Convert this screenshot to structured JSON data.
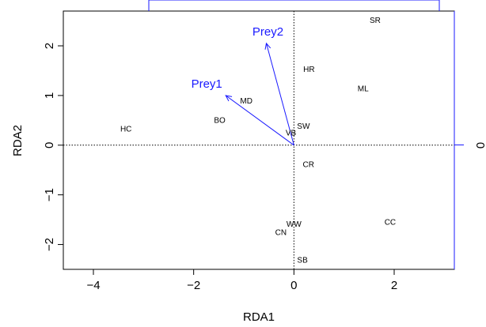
{
  "chart_data": {
    "type": "scatter",
    "xlabel": "RDA1",
    "ylabel": "RDA2",
    "xlim": [
      -4.6,
      3.2
    ],
    "ylim": [
      -2.5,
      2.7
    ],
    "x_ticks": [
      {
        "value": -4,
        "label": "−4"
      },
      {
        "value": -2,
        "label": "−2"
      },
      {
        "value": 0,
        "label": "0"
      },
      {
        "value": 2,
        "label": "2"
      }
    ],
    "y_ticks": [
      {
        "value": -2,
        "label": "−2"
      },
      {
        "value": -1,
        "label": "−1"
      },
      {
        "value": 0,
        "label": "0"
      },
      {
        "value": 1,
        "label": "1"
      },
      {
        "value": 2,
        "label": "2"
      }
    ],
    "right_axis_label": "0",
    "sites": [
      {
        "label": "SR",
        "x": 1.62,
        "y": 2.5
      },
      {
        "label": "HR",
        "x": 0.3,
        "y": 1.52
      },
      {
        "label": "ML",
        "x": 1.38,
        "y": 1.13
      },
      {
        "label": "MD",
        "x": -0.95,
        "y": 0.88
      },
      {
        "label": "HC",
        "x": -3.35,
        "y": 0.32
      },
      {
        "label": "BO",
        "x": -1.48,
        "y": 0.49
      },
      {
        "label": "SW",
        "x": 0.19,
        "y": 0.37
      },
      {
        "label": "VB",
        "x": -0.06,
        "y": 0.24
      },
      {
        "label": "CR",
        "x": 0.29,
        "y": -0.4
      },
      {
        "label": "CC",
        "x": 1.92,
        "y": -1.56
      },
      {
        "label": "WW",
        "x": 0.0,
        "y": -1.6
      },
      {
        "label": "CN",
        "x": -0.26,
        "y": -1.77
      },
      {
        "label": "SB",
        "x": 0.17,
        "y": -2.32
      }
    ],
    "arrows": [
      {
        "label": "Prey1",
        "x": -1.36,
        "y": 1.0
      },
      {
        "label": "Prey2",
        "x": -0.55,
        "y": 2.05
      }
    ],
    "arrow_color": "#1a1aff",
    "axis_color": "#000000",
    "right_axis_color": "#1a1aff",
    "reference_lines": "dotted at x=0 and y=0"
  }
}
